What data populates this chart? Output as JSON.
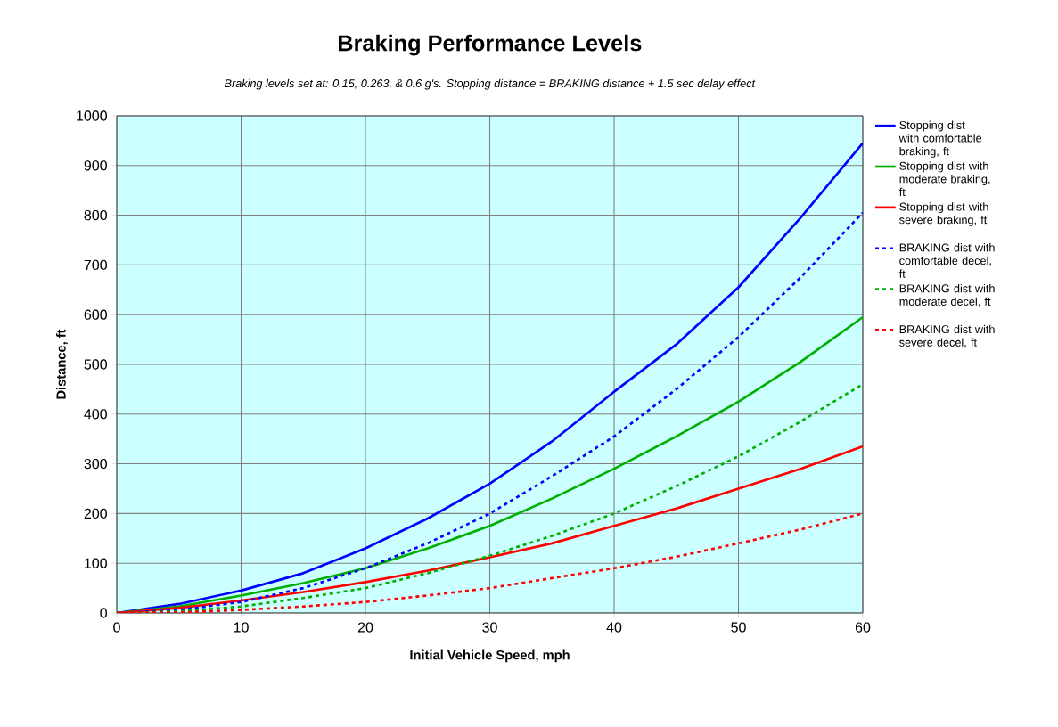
{
  "chart_data": {
    "type": "line",
    "title": "Braking Performance Levels",
    "subtitle": "Braking levels set at:  0.15, 0.263, & 0.6 g's.  Stopping distance = BRAKING distance + 1.5 sec delay effect",
    "xlabel": "Initial Vehicle Speed, mph",
    "ylabel": "Distance, ft",
    "x": [
      0,
      5,
      10,
      15,
      20,
      25,
      30,
      35,
      40,
      45,
      50,
      55,
      60
    ],
    "series": [
      {
        "name": "Stopping dist with comfortable braking, ft",
        "color": "#0000ff",
        "line_style": "solid",
        "values": [
          0,
          18,
          45,
          80,
          130,
          190,
          260,
          345,
          445,
          540,
          655,
          795,
          945
        ]
      },
      {
        "name": "Stopping dist with moderate braking, ft",
        "color": "#00b000",
        "line_style": "solid",
        "values": [
          0,
          13,
          35,
          60,
          90,
          130,
          175,
          230,
          290,
          355,
          425,
          505,
          595
        ]
      },
      {
        "name": "Stopping dist with severe braking, ft",
        "color": "#ff0000",
        "line_style": "solid",
        "values": [
          0,
          10,
          25,
          42,
          62,
          85,
          112,
          140,
          175,
          210,
          250,
          290,
          335
        ]
      },
      {
        "name": "BRAKING dist with comfortable decel, ft",
        "color": "#0000ff",
        "line_style": "dotted",
        "values": [
          0,
          6,
          22,
          50,
          90,
          140,
          200,
          275,
          355,
          450,
          555,
          675,
          805
        ]
      },
      {
        "name": "BRAKING dist with moderate decel, ft",
        "color": "#00b000",
        "line_style": "dotted",
        "values": [
          0,
          3,
          13,
          30,
          50,
          80,
          115,
          155,
          200,
          255,
          315,
          385,
          460
        ]
      },
      {
        "name": "BRAKING dist with severe decel, ft",
        "color": "#ff0000",
        "line_style": "dotted",
        "values": [
          0,
          1,
          6,
          13,
          22,
          35,
          50,
          70,
          90,
          113,
          140,
          168,
          200
        ]
      }
    ],
    "xlim": [
      0,
      60
    ],
    "xticks": [
      0,
      10,
      20,
      30,
      40,
      50,
      60
    ],
    "ylim": [
      0,
      1000
    ],
    "yticks": [
      0,
      100,
      200,
      300,
      400,
      500,
      600,
      700,
      800,
      900,
      1000
    ],
    "grid": true,
    "legend": "right",
    "marker": "none"
  }
}
